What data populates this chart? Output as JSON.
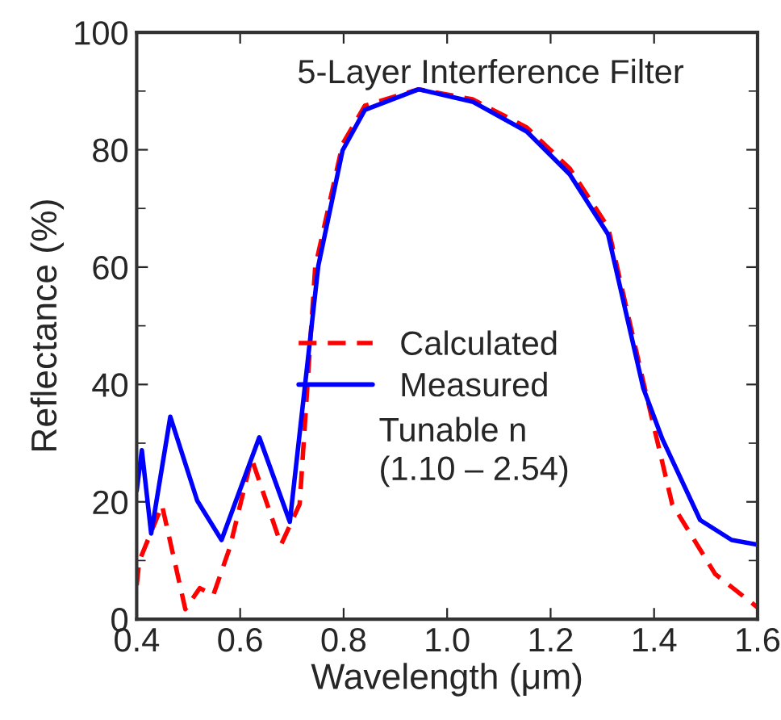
{
  "chart_data": {
    "type": "line",
    "title": "5-Layer Interference Filter",
    "xlabel": "Wavelength (μm)",
    "ylabel": "Reflectance (%)",
    "xlim": [
      0.4,
      1.6
    ],
    "xticks": [
      {
        "value": 0.4,
        "label": "0.4"
      },
      {
        "value": 0.6,
        "label": "0.6"
      },
      {
        "value": 0.8,
        "label": "0.8"
      },
      {
        "value": 1.0,
        "label": "1.0"
      },
      {
        "value": 1.2,
        "label": "1.2"
      },
      {
        "value": 1.4,
        "label": "1.4"
      },
      {
        "value": 1.6,
        "label": "1.6"
      }
    ],
    "ylim": [
      0,
      100
    ],
    "yticks": [
      0,
      20,
      40,
      60,
      80,
      100
    ],
    "legend": "center",
    "grid": false,
    "annotations": [
      "Tunable n\n(1.10 – 2.54)"
    ],
    "series": [
      {
        "name": "Calculated",
        "color": "#ff0000",
        "line_style": "dashed",
        "x": [
          0.4,
          0.405,
          0.449,
          0.494,
          0.522,
          0.548,
          0.58,
          0.622,
          0.679,
          0.715,
          0.745,
          0.798,
          0.841,
          0.945,
          1.049,
          1.154,
          1.237,
          1.311,
          1.379,
          1.435,
          1.518,
          1.6
        ],
        "values": [
          5.8,
          9.9,
          19.4,
          1.7,
          5.3,
          4.1,
          12.2,
          27.4,
          12.7,
          19.6,
          60,
          81,
          87.5,
          90.3,
          88.6,
          83.8,
          76.8,
          66.8,
          40.5,
          19.6,
          7.7,
          2
        ]
      },
      {
        "name": "Measured",
        "color": "#0000ff",
        "line_style": "solid",
        "x": [
          0.4,
          0.41,
          0.428,
          0.465,
          0.517,
          0.564,
          0.637,
          0.696,
          0.751,
          0.798,
          0.841,
          0.945,
          1.049,
          1.154,
          1.237,
          1.311,
          1.379,
          1.416,
          1.489,
          1.55,
          1.6
        ],
        "values": [
          21.9,
          28.8,
          14.6,
          34.5,
          20.2,
          13.5,
          31,
          16.6,
          60.2,
          79.9,
          86.8,
          90.3,
          88.2,
          83.1,
          75.8,
          65.6,
          39.4,
          30.7,
          16.9,
          13.5,
          12.7
        ]
      }
    ]
  }
}
